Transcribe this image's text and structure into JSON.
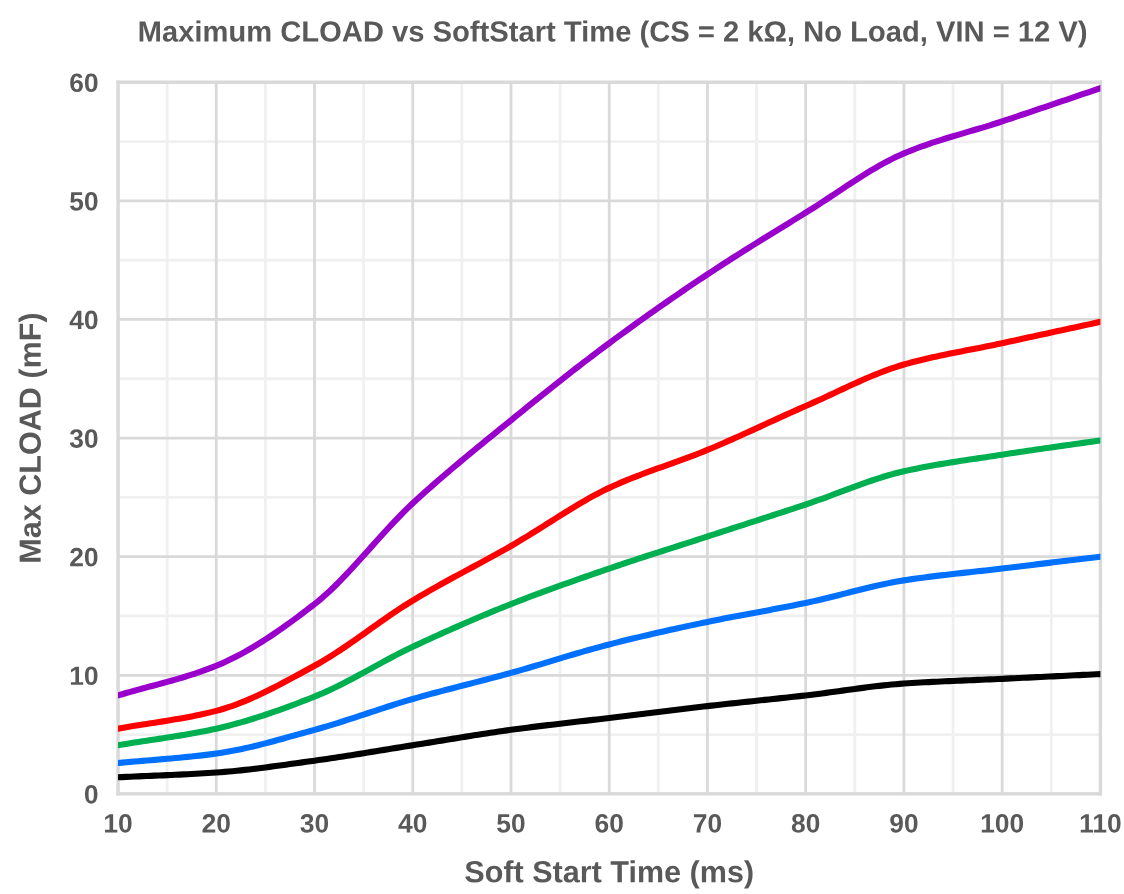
{
  "chart_data": {
    "type": "line",
    "title": "Maximum CLOAD vs SoftStart Time (CS = 2 kΩ, No Load, VIN = 12 V)",
    "xlabel": "Soft Start Time (ms)",
    "ylabel": "Max CLOAD (mF)",
    "x": [
      10,
      20,
      30,
      40,
      50,
      60,
      70,
      80,
      90,
      100,
      110
    ],
    "series": [
      {
        "color": "#9900cc",
        "values": [
          8.3,
          10.8,
          16.0,
          24.5,
          31.5,
          38.0,
          43.8,
          49.0,
          54.0,
          56.7,
          59.5
        ]
      },
      {
        "color": "#ff0000",
        "values": [
          5.5,
          7.0,
          10.8,
          16.3,
          20.9,
          25.8,
          29.0,
          32.7,
          36.2,
          38.0,
          39.8
        ]
      },
      {
        "color": "#00b050",
        "values": [
          4.1,
          5.5,
          8.2,
          12.4,
          16.0,
          19.0,
          21.7,
          24.4,
          27.2,
          28.6,
          29.8
        ]
      },
      {
        "color": "#0070ff",
        "values": [
          2.6,
          3.4,
          5.4,
          8.0,
          10.2,
          12.6,
          14.5,
          16.1,
          18.0,
          19.0,
          20.0
        ]
      },
      {
        "color": "#000000",
        "values": [
          1.4,
          1.8,
          2.8,
          4.1,
          5.4,
          6.4,
          7.4,
          8.3,
          9.3,
          9.7,
          10.1
        ]
      }
    ],
    "xlim": [
      10,
      110
    ],
    "xticks": [
      10,
      {
        "value": 15,
        "label": null
      },
      20,
      {
        "value": 25,
        "label": null
      },
      30,
      {
        "value": 35,
        "label": null
      },
      40,
      {
        "value": 45,
        "label": null
      },
      50,
      {
        "value": 55,
        "label": null
      },
      60,
      {
        "value": 65,
        "label": null
      },
      70,
      {
        "value": 75,
        "label": null
      },
      80,
      {
        "value": 85,
        "label": null
      },
      90,
      {
        "value": 95,
        "label": null
      },
      100,
      {
        "value": 105,
        "label": null
      },
      110
    ],
    "ylim": [
      0,
      60
    ],
    "yticks": [
      0,
      {
        "value": 5,
        "label": null
      },
      10,
      {
        "value": 15,
        "label": null
      },
      20,
      {
        "value": 25,
        "label": null
      },
      30,
      {
        "value": 35,
        "label": null
      },
      40,
      {
        "value": 45,
        "label": null
      },
      50,
      {
        "value": 55,
        "label": null
      },
      60
    ],
    "grid": true,
    "marker": "none",
    "line_style": "solid"
  }
}
